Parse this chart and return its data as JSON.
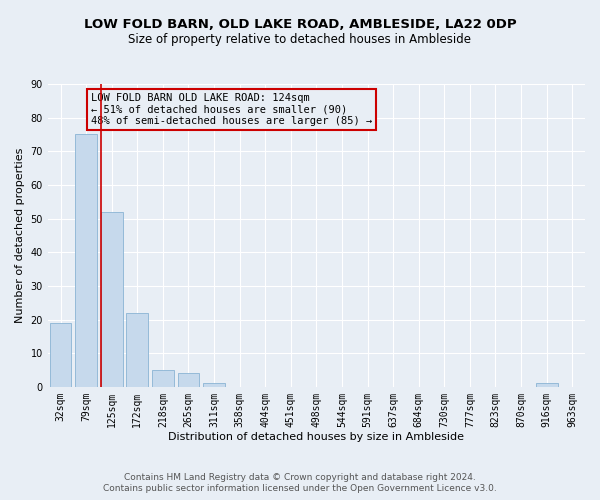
{
  "title": "LOW FOLD BARN, OLD LAKE ROAD, AMBLESIDE, LA22 0DP",
  "subtitle": "Size of property relative to detached houses in Ambleside",
  "xlabel": "Distribution of detached houses by size in Ambleside",
  "ylabel": "Number of detached properties",
  "footnote1": "Contains HM Land Registry data © Crown copyright and database right 2024.",
  "footnote2": "Contains public sector information licensed under the Open Government Licence v3.0.",
  "bin_labels": [
    "32sqm",
    "79sqm",
    "125sqm",
    "172sqm",
    "218sqm",
    "265sqm",
    "311sqm",
    "358sqm",
    "404sqm",
    "451sqm",
    "498sqm",
    "544sqm",
    "591sqm",
    "637sqm",
    "684sqm",
    "730sqm",
    "777sqm",
    "823sqm",
    "870sqm",
    "916sqm",
    "963sqm"
  ],
  "bar_values": [
    19,
    75,
    52,
    22,
    5,
    4,
    1,
    0,
    0,
    0,
    0,
    0,
    0,
    0,
    0,
    0,
    0,
    0,
    0,
    1,
    0
  ],
  "bar_color": "#c6d9ec",
  "bar_edge_color": "#8ab4d4",
  "vline_color": "#cc0000",
  "annotation_box_text": "LOW FOLD BARN OLD LAKE ROAD: 124sqm\n← 51% of detached houses are smaller (90)\n48% of semi-detached houses are larger (85) →",
  "annotation_box_color": "#cc0000",
  "ylim": [
    0,
    90
  ],
  "yticks": [
    0,
    10,
    20,
    30,
    40,
    50,
    60,
    70,
    80,
    90
  ],
  "background_color": "#e8eef5",
  "grid_color": "#ffffff",
  "title_fontsize": 9.5,
  "subtitle_fontsize": 8.5,
  "axis_label_fontsize": 8,
  "tick_fontsize": 7,
  "footnote_fontsize": 6.5,
  "annot_fontsize": 7.5
}
